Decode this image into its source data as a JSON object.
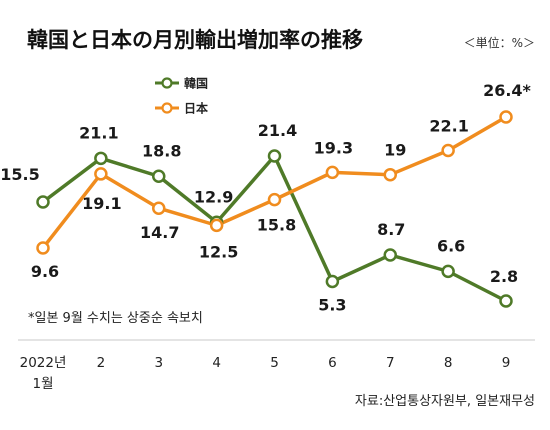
{
  "chart_data": {
    "type": "line",
    "title": "韓国と日本の月別輸出増加率の推移",
    "unit": "＜単位：%＞",
    "x": [
      "2022년 1월",
      "2",
      "3",
      "4",
      "5",
      "6",
      "7",
      "8",
      "9"
    ],
    "x_tick_labels": [
      [
        "2022년",
        "1월"
      ],
      [
        "2"
      ],
      [
        "3"
      ],
      [
        "4"
      ],
      [
        "5"
      ],
      [
        "6"
      ],
      [
        "7"
      ],
      [
        "8"
      ],
      [
        "9"
      ]
    ],
    "series": [
      {
        "name": "韓国",
        "color": "#4f7a28",
        "values": [
          15.5,
          21.1,
          18.8,
          12.9,
          21.4,
          5.3,
          8.7,
          6.6,
          2.8
        ],
        "labels": [
          "15.5",
          "21.1",
          "18.8",
          "12.9",
          "21.4",
          "5.3",
          "8.7",
          "6.6",
          "2.8"
        ]
      },
      {
        "name": "日本",
        "color": "#f08c1e",
        "values": [
          9.6,
          19.1,
          14.7,
          12.5,
          15.8,
          19.3,
          19,
          22.1,
          26.4
        ],
        "labels": [
          "9.6",
          "19.1",
          "14.7",
          "12.5",
          "15.8",
          "19.3",
          "19",
          "22.1",
          "26.4*"
        ]
      }
    ],
    "ylim": [
      2,
      27
    ],
    "grid": false,
    "legend_position": "top-left",
    "note": "*일본 9월 수치는 상중순 속보치",
    "source": "자료:산업통상자원부, 일본재무성"
  }
}
